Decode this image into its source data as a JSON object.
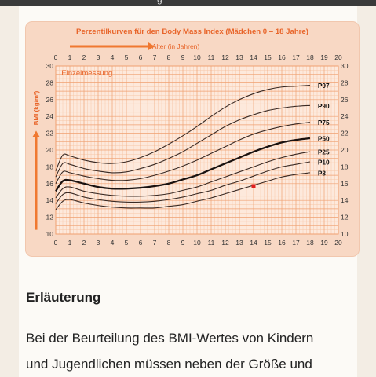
{
  "topbar": {
    "partial_text": "g"
  },
  "chart_data": {
    "type": "line",
    "title": "Perzentilkurven für den Body Mass Index (Mädchen 0 – 18 Jahre)",
    "xlabel": "Alter (in Jahren)",
    "ylabel": "BMI (kg/m²)",
    "subtitle": "Einzelmessung",
    "xlim": [
      0,
      20
    ],
    "ylim": [
      10,
      30
    ],
    "x_ticks": [
      "0",
      "1",
      "2",
      "3",
      "4",
      "5",
      "6",
      "7",
      "8",
      "9",
      "10",
      "11",
      "12",
      "13",
      "14",
      "15",
      "16",
      "17",
      "18",
      "19",
      "20"
    ],
    "y_ticks": [
      "10",
      "12",
      "14",
      "16",
      "18",
      "20",
      "22",
      "24",
      "26",
      "28",
      "30"
    ],
    "grid": true,
    "x": [
      0,
      0.5,
      1,
      2,
      3,
      4,
      5,
      6,
      7,
      8,
      9,
      10,
      11,
      12,
      13,
      14,
      15,
      16,
      17,
      18
    ],
    "series": [
      {
        "name": "P97",
        "values": [
          17.5,
          19.4,
          19.3,
          18.8,
          18.5,
          18.4,
          18.6,
          19.1,
          19.8,
          20.7,
          21.7,
          22.8,
          24.0,
          25.1,
          26.0,
          26.7,
          27.2,
          27.5,
          27.6,
          27.7
        ],
        "color": "#3a2a24",
        "width": 1.1
      },
      {
        "name": "P90",
        "values": [
          16.8,
          18.4,
          18.3,
          17.8,
          17.5,
          17.3,
          17.4,
          17.8,
          18.3,
          19.0,
          19.8,
          20.8,
          21.8,
          22.8,
          23.6,
          24.2,
          24.7,
          25.0,
          25.2,
          25.3
        ],
        "color": "#3a2a24",
        "width": 1.1
      },
      {
        "name": "P75",
        "values": [
          16.0,
          17.4,
          17.3,
          16.9,
          16.6,
          16.4,
          16.4,
          16.6,
          17.0,
          17.5,
          18.1,
          18.8,
          19.6,
          20.4,
          21.2,
          21.9,
          22.4,
          22.8,
          23.1,
          23.3
        ],
        "color": "#3a2a24",
        "width": 1.1
      },
      {
        "name": "P50",
        "values": [
          15.1,
          16.3,
          16.4,
          16.0,
          15.6,
          15.4,
          15.4,
          15.5,
          15.7,
          16.0,
          16.5,
          17.0,
          17.7,
          18.4,
          19.1,
          19.8,
          20.4,
          20.9,
          21.2,
          21.4
        ],
        "color": "#1a1210",
        "width": 2.3
      },
      {
        "name": "P25",
        "values": [
          14.3,
          15.4,
          15.6,
          15.1,
          14.8,
          14.6,
          14.5,
          14.5,
          14.6,
          14.8,
          15.2,
          15.6,
          16.2,
          16.8,
          17.4,
          18.0,
          18.6,
          19.1,
          19.5,
          19.8
        ],
        "color": "#3a2a24",
        "width": 1.1
      },
      {
        "name": "P10",
        "values": [
          13.6,
          14.7,
          14.9,
          14.4,
          14.1,
          13.9,
          13.8,
          13.8,
          13.9,
          14.1,
          14.4,
          14.8,
          15.2,
          15.8,
          16.3,
          16.9,
          17.5,
          18.0,
          18.3,
          18.6
        ],
        "color": "#3a2a24",
        "width": 1.1
      },
      {
        "name": "P3",
        "values": [
          12.9,
          13.9,
          14.1,
          13.7,
          13.4,
          13.2,
          13.1,
          13.1,
          13.1,
          13.3,
          13.5,
          13.9,
          14.3,
          14.8,
          15.3,
          15.8,
          16.3,
          16.8,
          17.1,
          17.3
        ],
        "color": "#3a2a24",
        "width": 1.1
      }
    ],
    "marker": {
      "x": 14,
      "y": 15.7,
      "color": "#e02020"
    },
    "colors": {
      "card_bg": "#f8d8c4",
      "plot_bg": "#fde9dc",
      "grid_minor": "#f7c8a8",
      "grid_major": "#f0a070",
      "accent": "#f07830",
      "title_color": "#e8652a"
    }
  },
  "content": {
    "heading": "Erläuterung",
    "paragraph_line1": "Bei der Beurteilung des BMI-Wertes von Kindern",
    "paragraph_line2": "und Jugendlichen müssen neben der Größe und"
  }
}
